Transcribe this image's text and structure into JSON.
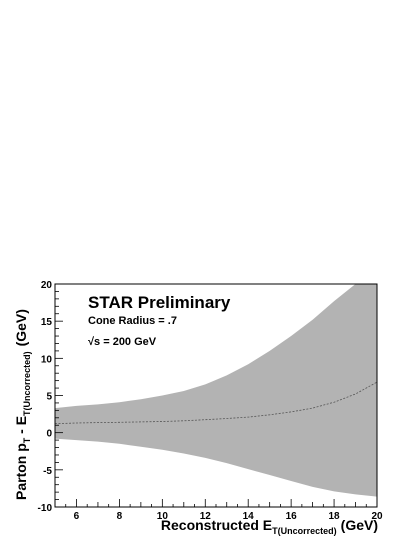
{
  "chart_data": {
    "type": "area",
    "xlabel_main": "Reconstructed E",
    "xlabel_sub": "T(Uncorrected)",
    "xlabel_unit": "(GeV)",
    "ylabel_main": "Parton p",
    "ylabel_sub1": "T",
    "ylabel_dash": " - E",
    "ylabel_sub2": "T(Uncorrected)",
    "ylabel_unit": "(GeV)",
    "xlim": [
      5,
      20
    ],
    "ylim": [
      -10,
      20
    ],
    "x_ticks": [
      6,
      8,
      10,
      12,
      14,
      16,
      18,
      20
    ],
    "y_ticks": [
      -10,
      -5,
      0,
      5,
      10,
      15,
      20
    ],
    "annotations": {
      "headline": "STAR Preliminary",
      "cone": "Cone Radius = .7",
      "energy_sqrt": "√",
      "energy_rest": "s = 200 GeV"
    },
    "x": [
      5,
      6,
      7,
      8,
      9,
      10,
      11,
      12,
      13,
      14,
      15,
      16,
      17,
      18,
      19,
      20
    ],
    "mean": [
      1.2,
      1.3,
      1.35,
      1.4,
      1.45,
      1.5,
      1.6,
      1.75,
      1.9,
      2.1,
      2.4,
      2.8,
      3.3,
      4.1,
      5.2,
      6.8
    ],
    "upper": [
      3.3,
      3.6,
      3.8,
      4.1,
      4.5,
      5.0,
      5.6,
      6.5,
      7.7,
      9.2,
      11.0,
      13.0,
      15.2,
      17.7,
      20.0,
      20.0
    ],
    "lower": [
      -0.8,
      -1.0,
      -1.2,
      -1.5,
      -1.9,
      -2.3,
      -2.8,
      -3.4,
      -4.1,
      -4.9,
      -5.7,
      -6.5,
      -7.3,
      -7.9,
      -8.3,
      -8.6
    ],
    "band_color": "#b3b3b3",
    "mean_color": "#555555"
  }
}
